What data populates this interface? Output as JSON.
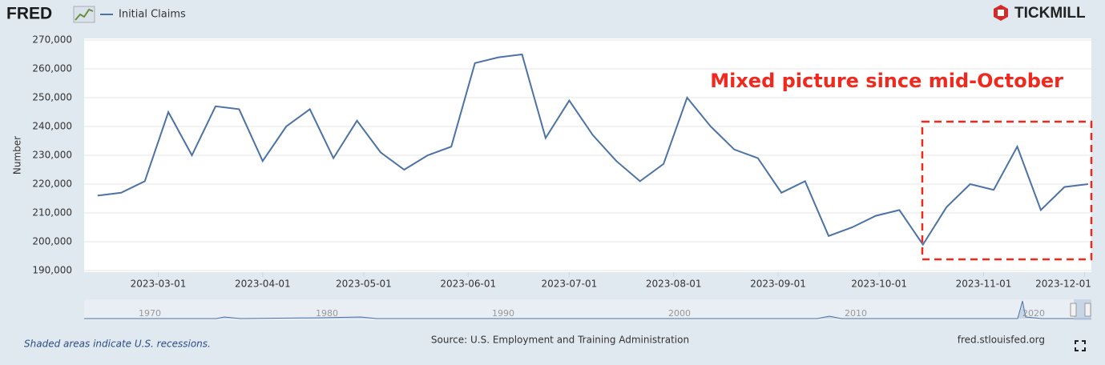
{
  "chart_data": {
    "type": "line",
    "logo": "FRED",
    "brand": "TICKMILL",
    "annotation": "Mixed picture since mid-October",
    "y_label": "Number",
    "x": [
      "2023-02-11",
      "2023-02-18",
      "2023-02-25",
      "2023-03-04",
      "2023-03-11",
      "2023-03-18",
      "2023-03-25",
      "2023-04-01",
      "2023-04-08",
      "2023-04-15",
      "2023-04-22",
      "2023-04-29",
      "2023-05-06",
      "2023-05-13",
      "2023-05-20",
      "2023-05-27",
      "2023-06-03",
      "2023-06-10",
      "2023-06-17",
      "2023-06-24",
      "2023-07-01",
      "2023-07-08",
      "2023-07-15",
      "2023-07-22",
      "2023-07-29",
      "2023-08-05",
      "2023-08-12",
      "2023-08-19",
      "2023-08-26",
      "2023-09-02",
      "2023-09-09",
      "2023-09-16",
      "2023-09-23",
      "2023-09-30",
      "2023-10-07",
      "2023-10-14",
      "2023-10-21",
      "2023-10-28",
      "2023-11-04",
      "2023-11-11",
      "2023-11-18",
      "2023-11-25",
      "2023-12-02"
    ],
    "series": [
      {
        "name": "Initial Claims",
        "color": "#4c72a6",
        "values": [
          216000,
          217000,
          221000,
          245000,
          230000,
          247000,
          246000,
          228000,
          240000,
          246000,
          229000,
          242000,
          231000,
          225000,
          230000,
          233000,
          262000,
          264000,
          265000,
          236000,
          249000,
          237000,
          228000,
          221000,
          227000,
          250000,
          240000,
          232000,
          229000,
          217000,
          221000,
          202000,
          205000,
          209000,
          211000,
          199000,
          212000,
          220000,
          218000,
          233000,
          211000,
          219000,
          220000
        ]
      }
    ],
    "xlim": [
      "2023-02-07",
      "2023-12-03"
    ],
    "xticks": [
      "2023-03-01",
      "2023-04-01",
      "2023-05-01",
      "2023-06-01",
      "2023-07-01",
      "2023-08-01",
      "2023-09-01",
      "2023-10-01",
      "2023-11-01",
      "2023-12-01"
    ],
    "ylim": [
      190000,
      270000
    ],
    "yticks": [
      {
        "value": 190000,
        "label": "190,000"
      },
      {
        "value": 200000,
        "label": "200,000"
      },
      {
        "value": 210000,
        "label": "210,000"
      },
      {
        "value": 220000,
        "label": "220,000"
      },
      {
        "value": 230000,
        "label": "230,000"
      },
      {
        "value": 240000,
        "label": "240,000"
      },
      {
        "value": 250000,
        "label": "250,000"
      },
      {
        "value": 260000,
        "label": "260,000"
      },
      {
        "value": 270000,
        "label": "270,000"
      }
    ],
    "grid": true,
    "navigator_labels": [
      "1970",
      "1980",
      "1990",
      "2000",
      "2010",
      "2020"
    ],
    "note": "Shaded areas indicate U.S. recessions.",
    "source": "Source: U.S. Employment and Training Administration",
    "site": "fred.stlouisfed.org"
  }
}
